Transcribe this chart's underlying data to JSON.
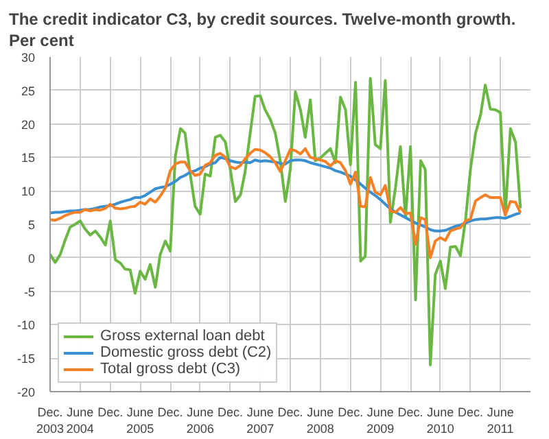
{
  "chart_data": {
    "type": "line",
    "title": "The credit indicator C3, by credit sources. Twelve-month growth. Per cent",
    "x": [
      "2003-12",
      "2004-01",
      "2004-02",
      "2004-03",
      "2004-04",
      "2004-05",
      "2004-06",
      "2004-07",
      "2004-08",
      "2004-09",
      "2004-10",
      "2004-11",
      "2004-12",
      "2005-01",
      "2005-02",
      "2005-03",
      "2005-04",
      "2005-05",
      "2005-06",
      "2005-07",
      "2005-08",
      "2005-09",
      "2005-10",
      "2005-11",
      "2005-12",
      "2006-01",
      "2006-02",
      "2006-03",
      "2006-04",
      "2006-05",
      "2006-06",
      "2006-07",
      "2006-08",
      "2006-09",
      "2006-10",
      "2006-11",
      "2006-12",
      "2007-01",
      "2007-02",
      "2007-03",
      "2007-04",
      "2007-05",
      "2007-06",
      "2007-07",
      "2007-08",
      "2007-09",
      "2007-10",
      "2007-11",
      "2007-12",
      "2008-01",
      "2008-02",
      "2008-03",
      "2008-04",
      "2008-05",
      "2008-06",
      "2008-07",
      "2008-08",
      "2008-09",
      "2008-10",
      "2008-11",
      "2008-12",
      "2009-01",
      "2009-02",
      "2009-03",
      "2009-04",
      "2009-05",
      "2009-06",
      "2009-07",
      "2009-08",
      "2009-09",
      "2009-10",
      "2009-11",
      "2009-12",
      "2010-01",
      "2010-02",
      "2010-03",
      "2010-04",
      "2010-05",
      "2010-06",
      "2010-07",
      "2010-08",
      "2010-09",
      "2010-10",
      "2010-11",
      "2010-12",
      "2011-01",
      "2011-02",
      "2011-03",
      "2011-04",
      "2011-05",
      "2011-06",
      "2011-07",
      "2011-08",
      "2011-09",
      "2011-10"
    ],
    "series": [
      {
        "name": "Gross external loan debt",
        "color": "#6ab744",
        "values": [
          0.5,
          -0.7,
          0.5,
          2.6,
          4.6,
          5.0,
          5.5,
          4.3,
          3.4,
          4.0,
          3.1,
          1.9,
          5.5,
          -0.3,
          -0.8,
          -1.7,
          -1.8,
          -5.3,
          -2.0,
          -3.2,
          -1.0,
          -4.4,
          0.5,
          2.5,
          1.0,
          15.2,
          19.3,
          18.6,
          12.5,
          7.7,
          6.5,
          12.5,
          12.2,
          18.0,
          18.3,
          17.3,
          13.2,
          8.4,
          9.4,
          12.8,
          18.6,
          24.1,
          24.2,
          22.1,
          20.7,
          18.6,
          14.5,
          8.4,
          13.2,
          24.8,
          22.1,
          18.0,
          23.6,
          14.5,
          14.9,
          15.6,
          16.3,
          14.2,
          24.0,
          22.1,
          13.9,
          26.2,
          -0.5,
          0.2,
          26.8,
          16.9,
          16.3,
          26.5,
          5.3,
          10.5,
          16.6,
          6.0,
          16.6,
          -6.3,
          14.5,
          13.2,
          -16.0,
          -2.5,
          -0.5,
          -4.6,
          1.6,
          1.7,
          0.3,
          5.7,
          13.2,
          18.6,
          21.4,
          25.8,
          22.2,
          22.1,
          21.7,
          6.4,
          19.3,
          17.3,
          7.4
        ]
      },
      {
        "name": "Domestic gross debt (C2)",
        "color": "#3a8fd0",
        "values": [
          6.7,
          6.8,
          6.8,
          6.9,
          7.0,
          7.0,
          7.1,
          7.2,
          7.2,
          7.4,
          7.6,
          7.7,
          7.8,
          8.0,
          8.3,
          8.5,
          8.7,
          9.0,
          9.0,
          9.3,
          9.8,
          10.3,
          10.5,
          10.6,
          11.0,
          11.4,
          12.0,
          12.3,
          12.8,
          13.0,
          13.4,
          13.6,
          14.0,
          14.2,
          15.0,
          14.8,
          14.5,
          14.3,
          14.2,
          14.3,
          14.2,
          14.6,
          14.4,
          14.5,
          14.4,
          14.3,
          14.1,
          14.0,
          14.5,
          14.6,
          14.6,
          14.5,
          14.2,
          14.0,
          13.8,
          13.6,
          13.4,
          13.0,
          12.8,
          12.5,
          12.2,
          11.6,
          11.0,
          10.4,
          9.8,
          9.3,
          8.7,
          8.0,
          7.3,
          6.8,
          6.4,
          6.0,
          5.6,
          5.2,
          4.9,
          4.6,
          4.2,
          4.0,
          4.0,
          4.1,
          4.4,
          4.7,
          4.9,
          5.2,
          5.5,
          5.7,
          5.8,
          5.8,
          5.9,
          6.0,
          6.0,
          5.9,
          6.2,
          6.5,
          6.7
        ]
      },
      {
        "name": "Total gross debt (C3)",
        "color": "#f58025",
        "values": [
          5.7,
          5.6,
          5.9,
          6.3,
          6.6,
          6.8,
          6.8,
          7.2,
          7.0,
          7.2,
          7.1,
          7.4,
          8.0,
          7.4,
          7.3,
          7.4,
          7.6,
          7.7,
          8.3,
          8.0,
          8.8,
          8.3,
          9.2,
          10.4,
          13.0,
          14.0,
          14.3,
          14.3,
          13.0,
          12.3,
          12.5,
          13.8,
          14.2,
          15.3,
          15.6,
          15.0,
          13.6,
          13.3,
          13.8,
          14.8,
          15.6,
          16.2,
          16.1,
          15.7,
          15.1,
          14.2,
          12.9,
          14.5,
          16.2,
          16.0,
          15.5,
          16.3,
          15.0,
          14.8,
          14.6,
          14.4,
          13.7,
          14.5,
          14.2,
          13.0,
          11.0,
          12.8,
          7.7,
          7.6,
          12.0,
          9.8,
          9.4,
          10.8,
          7.0,
          6.8,
          7.5,
          6.6,
          6.7,
          2.0,
          6.0,
          5.7,
          0.0,
          2.5,
          3.0,
          2.6,
          4.0,
          4.3,
          4.5,
          5.5,
          5.8,
          8.5,
          9.0,
          9.4,
          9.0,
          9.0,
          9.0,
          6.4,
          8.4,
          8.3,
          6.7
        ]
      }
    ],
    "xlim": [
      "2003-12",
      "2011-12"
    ],
    "xticks": [
      {
        "value": "2003-12",
        "label": "Dec.\n2003"
      },
      {
        "value": "2004-06",
        "label": "June\n2004"
      },
      {
        "value": "2004-12",
        "label": "Dec."
      },
      {
        "value": "2005-06",
        "label": "June\n2005"
      },
      {
        "value": "2005-12",
        "label": "Dec."
      },
      {
        "value": "2006-06",
        "label": "June\n2006"
      },
      {
        "value": "2006-12",
        "label": "Dec."
      },
      {
        "value": "2007-06",
        "label": "June\n2007"
      },
      {
        "value": "2007-12",
        "label": "Dec."
      },
      {
        "value": "2008-06",
        "label": "June\n2008"
      },
      {
        "value": "2008-12",
        "label": "Dec."
      },
      {
        "value": "2009-06",
        "label": "June\n2009"
      },
      {
        "value": "2009-12",
        "label": "Dec."
      },
      {
        "value": "2010-06",
        "label": "June\n2010"
      },
      {
        "value": "2010-12",
        "label": "Dec."
      },
      {
        "value": "2011-06",
        "label": "June\n2011"
      }
    ],
    "ylim": [
      -20,
      30
    ],
    "yticks": [
      -20,
      -15,
      -10,
      -5,
      0,
      5,
      10,
      15,
      20,
      25,
      30
    ],
    "grid": true,
    "legend": "bottom left",
    "marker": "none",
    "line_style": "solid"
  }
}
